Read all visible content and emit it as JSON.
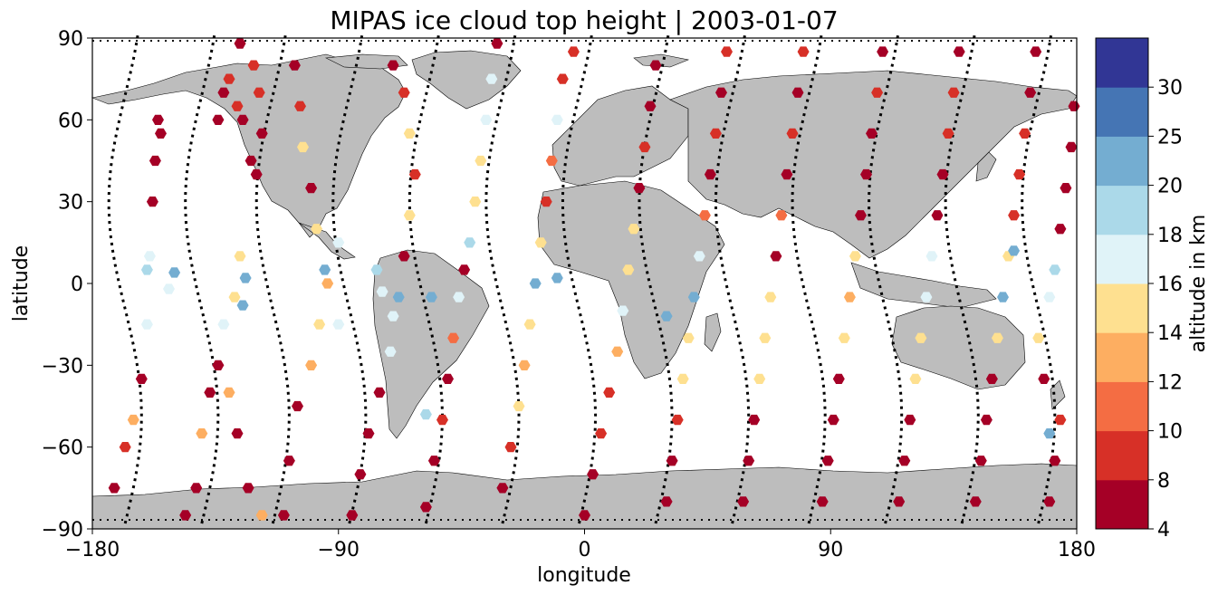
{
  "chart_data": {
    "type": "scatter",
    "title": "MIPAS ice cloud top height | 2003-01-07",
    "xlabel": "longitude",
    "ylabel": "latitude",
    "xlim": [
      -180,
      180
    ],
    "ylim": [
      -90,
      90
    ],
    "xticks": [
      -180,
      -90,
      0,
      90,
      180
    ],
    "xtick_labels": [
      "−180",
      "−90",
      "0",
      "90",
      "180"
    ],
    "yticks": [
      90,
      60,
      30,
      0,
      -30,
      -60,
      -90
    ],
    "ytick_labels": [
      "90",
      "60",
      "30",
      "0",
      "−30",
      "−60",
      "−90"
    ],
    "marker": "hexagon",
    "background": "world map, land in grey",
    "colorbar": {
      "label": "altitude in km",
      "levels": [
        4,
        8,
        10,
        12,
        14,
        16,
        18,
        20,
        25,
        30
      ],
      "tick_labels": [
        "4",
        "8",
        "10",
        "12",
        "14",
        "16",
        "18",
        "20",
        "25",
        "30"
      ],
      "colors": [
        "#a50026",
        "#d73027",
        "#f46d43",
        "#fdae61",
        "#fee090",
        "#e0f3f8",
        "#abd9e9",
        "#74add1",
        "#4575b4",
        "#313695"
      ]
    },
    "series": [
      {
        "type": "scatter",
        "note_units": "lon, lat in degrees; altitude in km",
        "points": [
          [
            -172,
            -75,
            6
          ],
          [
            -168,
            -60,
            8
          ],
          [
            -165,
            -50,
            12
          ],
          [
            -162,
            -35,
            6
          ],
          [
            -160,
            -15,
            16
          ],
          [
            -160,
            5,
            18
          ],
          [
            -159,
            10,
            17
          ],
          [
            -157,
            45,
            6
          ],
          [
            -158,
            30,
            6
          ],
          [
            -156,
            60,
            6
          ],
          [
            -155,
            55,
            6
          ],
          [
            -146,
            -85,
            6
          ],
          [
            -142,
            -75,
            6
          ],
          [
            -140,
            -55,
            12
          ],
          [
            -137,
            -40,
            6
          ],
          [
            -134,
            -30,
            6
          ],
          [
            -132,
            -15,
            16
          ],
          [
            -128,
            -5,
            14
          ],
          [
            -126,
            10,
            14
          ],
          [
            -130,
            -40,
            12
          ],
          [
            -127,
            -55,
            6
          ],
          [
            -123,
            -75,
            6
          ],
          [
            -118,
            -85,
            12
          ],
          [
            -124,
            2,
            20
          ],
          [
            -125,
            -8,
            20
          ],
          [
            -134,
            60,
            6
          ],
          [
            -132,
            70,
            6
          ],
          [
            -130,
            75,
            8
          ],
          [
            -126,
            88,
            6
          ],
          [
            -121,
            80,
            8
          ],
          [
            -119,
            70,
            8
          ],
          [
            -118,
            55,
            6
          ],
          [
            -120,
            40,
            6
          ],
          [
            -122,
            45,
            6
          ],
          [
            -125,
            60,
            6
          ],
          [
            -127,
            65,
            8
          ],
          [
            -110,
            -85,
            6
          ],
          [
            -108,
            -65,
            6
          ],
          [
            -105,
            -45,
            6
          ],
          [
            -100,
            -30,
            12
          ],
          [
            -97,
            -15,
            14
          ],
          [
            -94,
            0,
            12
          ],
          [
            -90,
            15,
            16
          ],
          [
            -98,
            20,
            14
          ],
          [
            -100,
            35,
            6
          ],
          [
            -103,
            50,
            14
          ],
          [
            -104,
            65,
            8
          ],
          [
            -106,
            80,
            6
          ],
          [
            -85,
            -85,
            6
          ],
          [
            -82,
            -70,
            6
          ],
          [
            -79,
            -55,
            6
          ],
          [
            -75,
            -40,
            6
          ],
          [
            -71,
            -25,
            16
          ],
          [
            -70,
            -12,
            17
          ],
          [
            -68,
            -5,
            20
          ],
          [
            -66,
            10,
            6
          ],
          [
            -64,
            25,
            14
          ],
          [
            -62,
            40,
            8
          ],
          [
            -64,
            55,
            14
          ],
          [
            -66,
            70,
            8
          ],
          [
            -70,
            80,
            6
          ],
          [
            -58,
            -82,
            6
          ],
          [
            -55,
            -65,
            6
          ],
          [
            -52,
            -50,
            8
          ],
          [
            -50,
            -35,
            6
          ],
          [
            -48,
            -20,
            10
          ],
          [
            -46,
            -5,
            17
          ],
          [
            -44,
            5,
            6
          ],
          [
            -42,
            15,
            18
          ],
          [
            -40,
            30,
            14
          ],
          [
            -38,
            45,
            14
          ],
          [
            -36,
            60,
            16
          ],
          [
            -34,
            75,
            16
          ],
          [
            -32,
            88,
            6
          ],
          [
            -30,
            -75,
            6
          ],
          [
            -27,
            -60,
            8
          ],
          [
            -24,
            -45,
            14
          ],
          [
            -22,
            -30,
            12
          ],
          [
            -20,
            -15,
            14
          ],
          [
            -18,
            0,
            20
          ],
          [
            -16,
            15,
            14
          ],
          [
            -14,
            30,
            8
          ],
          [
            -12,
            45,
            10
          ],
          [
            -10,
            60,
            16
          ],
          [
            -8,
            75,
            8
          ],
          [
            -4,
            85,
            8
          ],
          [
            0,
            -85,
            6
          ],
          [
            3,
            -70,
            6
          ],
          [
            6,
            -55,
            8
          ],
          [
            9,
            -40,
            8
          ],
          [
            12,
            -25,
            12
          ],
          [
            14,
            -10,
            16
          ],
          [
            16,
            5,
            15
          ],
          [
            18,
            20,
            14
          ],
          [
            20,
            35,
            6
          ],
          [
            22,
            50,
            8
          ],
          [
            24,
            65,
            6
          ],
          [
            26,
            80,
            6
          ],
          [
            30,
            -80,
            6
          ],
          [
            32,
            -65,
            6
          ],
          [
            34,
            -50,
            8
          ],
          [
            36,
            -35,
            14
          ],
          [
            38,
            -20,
            14
          ],
          [
            40,
            -5,
            20
          ],
          [
            42,
            10,
            16
          ],
          [
            44,
            25,
            10
          ],
          [
            46,
            40,
            6
          ],
          [
            48,
            55,
            8
          ],
          [
            50,
            70,
            6
          ],
          [
            52,
            85,
            8
          ],
          [
            58,
            -80,
            6
          ],
          [
            60,
            -65,
            6
          ],
          [
            62,
            -50,
            6
          ],
          [
            64,
            -35,
            14
          ],
          [
            66,
            -20,
            14
          ],
          [
            68,
            -5,
            14
          ],
          [
            70,
            10,
            6
          ],
          [
            72,
            25,
            10
          ],
          [
            74,
            40,
            6
          ],
          [
            76,
            55,
            8
          ],
          [
            78,
            70,
            6
          ],
          [
            80,
            85,
            8
          ],
          [
            87,
            -80,
            6
          ],
          [
            89,
            -65,
            6
          ],
          [
            91,
            -50,
            6
          ],
          [
            93,
            -35,
            6
          ],
          [
            95,
            -20,
            14
          ],
          [
            97,
            -5,
            12
          ],
          [
            99,
            10,
            14
          ],
          [
            101,
            25,
            6
          ],
          [
            103,
            40,
            6
          ],
          [
            105,
            55,
            6
          ],
          [
            107,
            70,
            8
          ],
          [
            109,
            85,
            6
          ],
          [
            115,
            -80,
            6
          ],
          [
            117,
            -65,
            6
          ],
          [
            119,
            -50,
            6
          ],
          [
            121,
            -35,
            14
          ],
          [
            123,
            -20,
            14
          ],
          [
            125,
            -5,
            16
          ],
          [
            127,
            10,
            16
          ],
          [
            129,
            25,
            6
          ],
          [
            131,
            40,
            6
          ],
          [
            133,
            55,
            8
          ],
          [
            135,
            70,
            8
          ],
          [
            137,
            85,
            6
          ],
          [
            143,
            -80,
            6
          ],
          [
            145,
            -65,
            6
          ],
          [
            147,
            -50,
            6
          ],
          [
            149,
            -35,
            6
          ],
          [
            151,
            -20,
            14
          ],
          [
            153,
            -5,
            20
          ],
          [
            155,
            10,
            14
          ],
          [
            157,
            25,
            8
          ],
          [
            159,
            40,
            8
          ],
          [
            161,
            55,
            8
          ],
          [
            163,
            70,
            6
          ],
          [
            165,
            85,
            6
          ],
          [
            170,
            -80,
            6
          ],
          [
            172,
            -65,
            6
          ],
          [
            174,
            -50,
            8
          ],
          [
            168,
            -35,
            6
          ],
          [
            166,
            -20,
            14
          ],
          [
            170,
            -5,
            17
          ],
          [
            172,
            5,
            18
          ],
          [
            174,
            20,
            6
          ],
          [
            176,
            35,
            6
          ],
          [
            178,
            50,
            6
          ],
          [
            179,
            65,
            6
          ],
          [
            -150,
            4,
            20
          ],
          [
            -152,
            -2,
            17
          ],
          [
            -90,
            -15,
            17
          ],
          [
            -76,
            5,
            18
          ],
          [
            -74,
            -3,
            17
          ],
          [
            -56,
            -5,
            20
          ],
          [
            -58,
            -48,
            18
          ],
          [
            -10,
            2,
            20
          ],
          [
            30,
            -12,
            20
          ],
          [
            -95,
            5,
            20
          ],
          [
            157,
            12,
            20
          ],
          [
            170,
            -55,
            20
          ]
        ]
      }
    ]
  }
}
